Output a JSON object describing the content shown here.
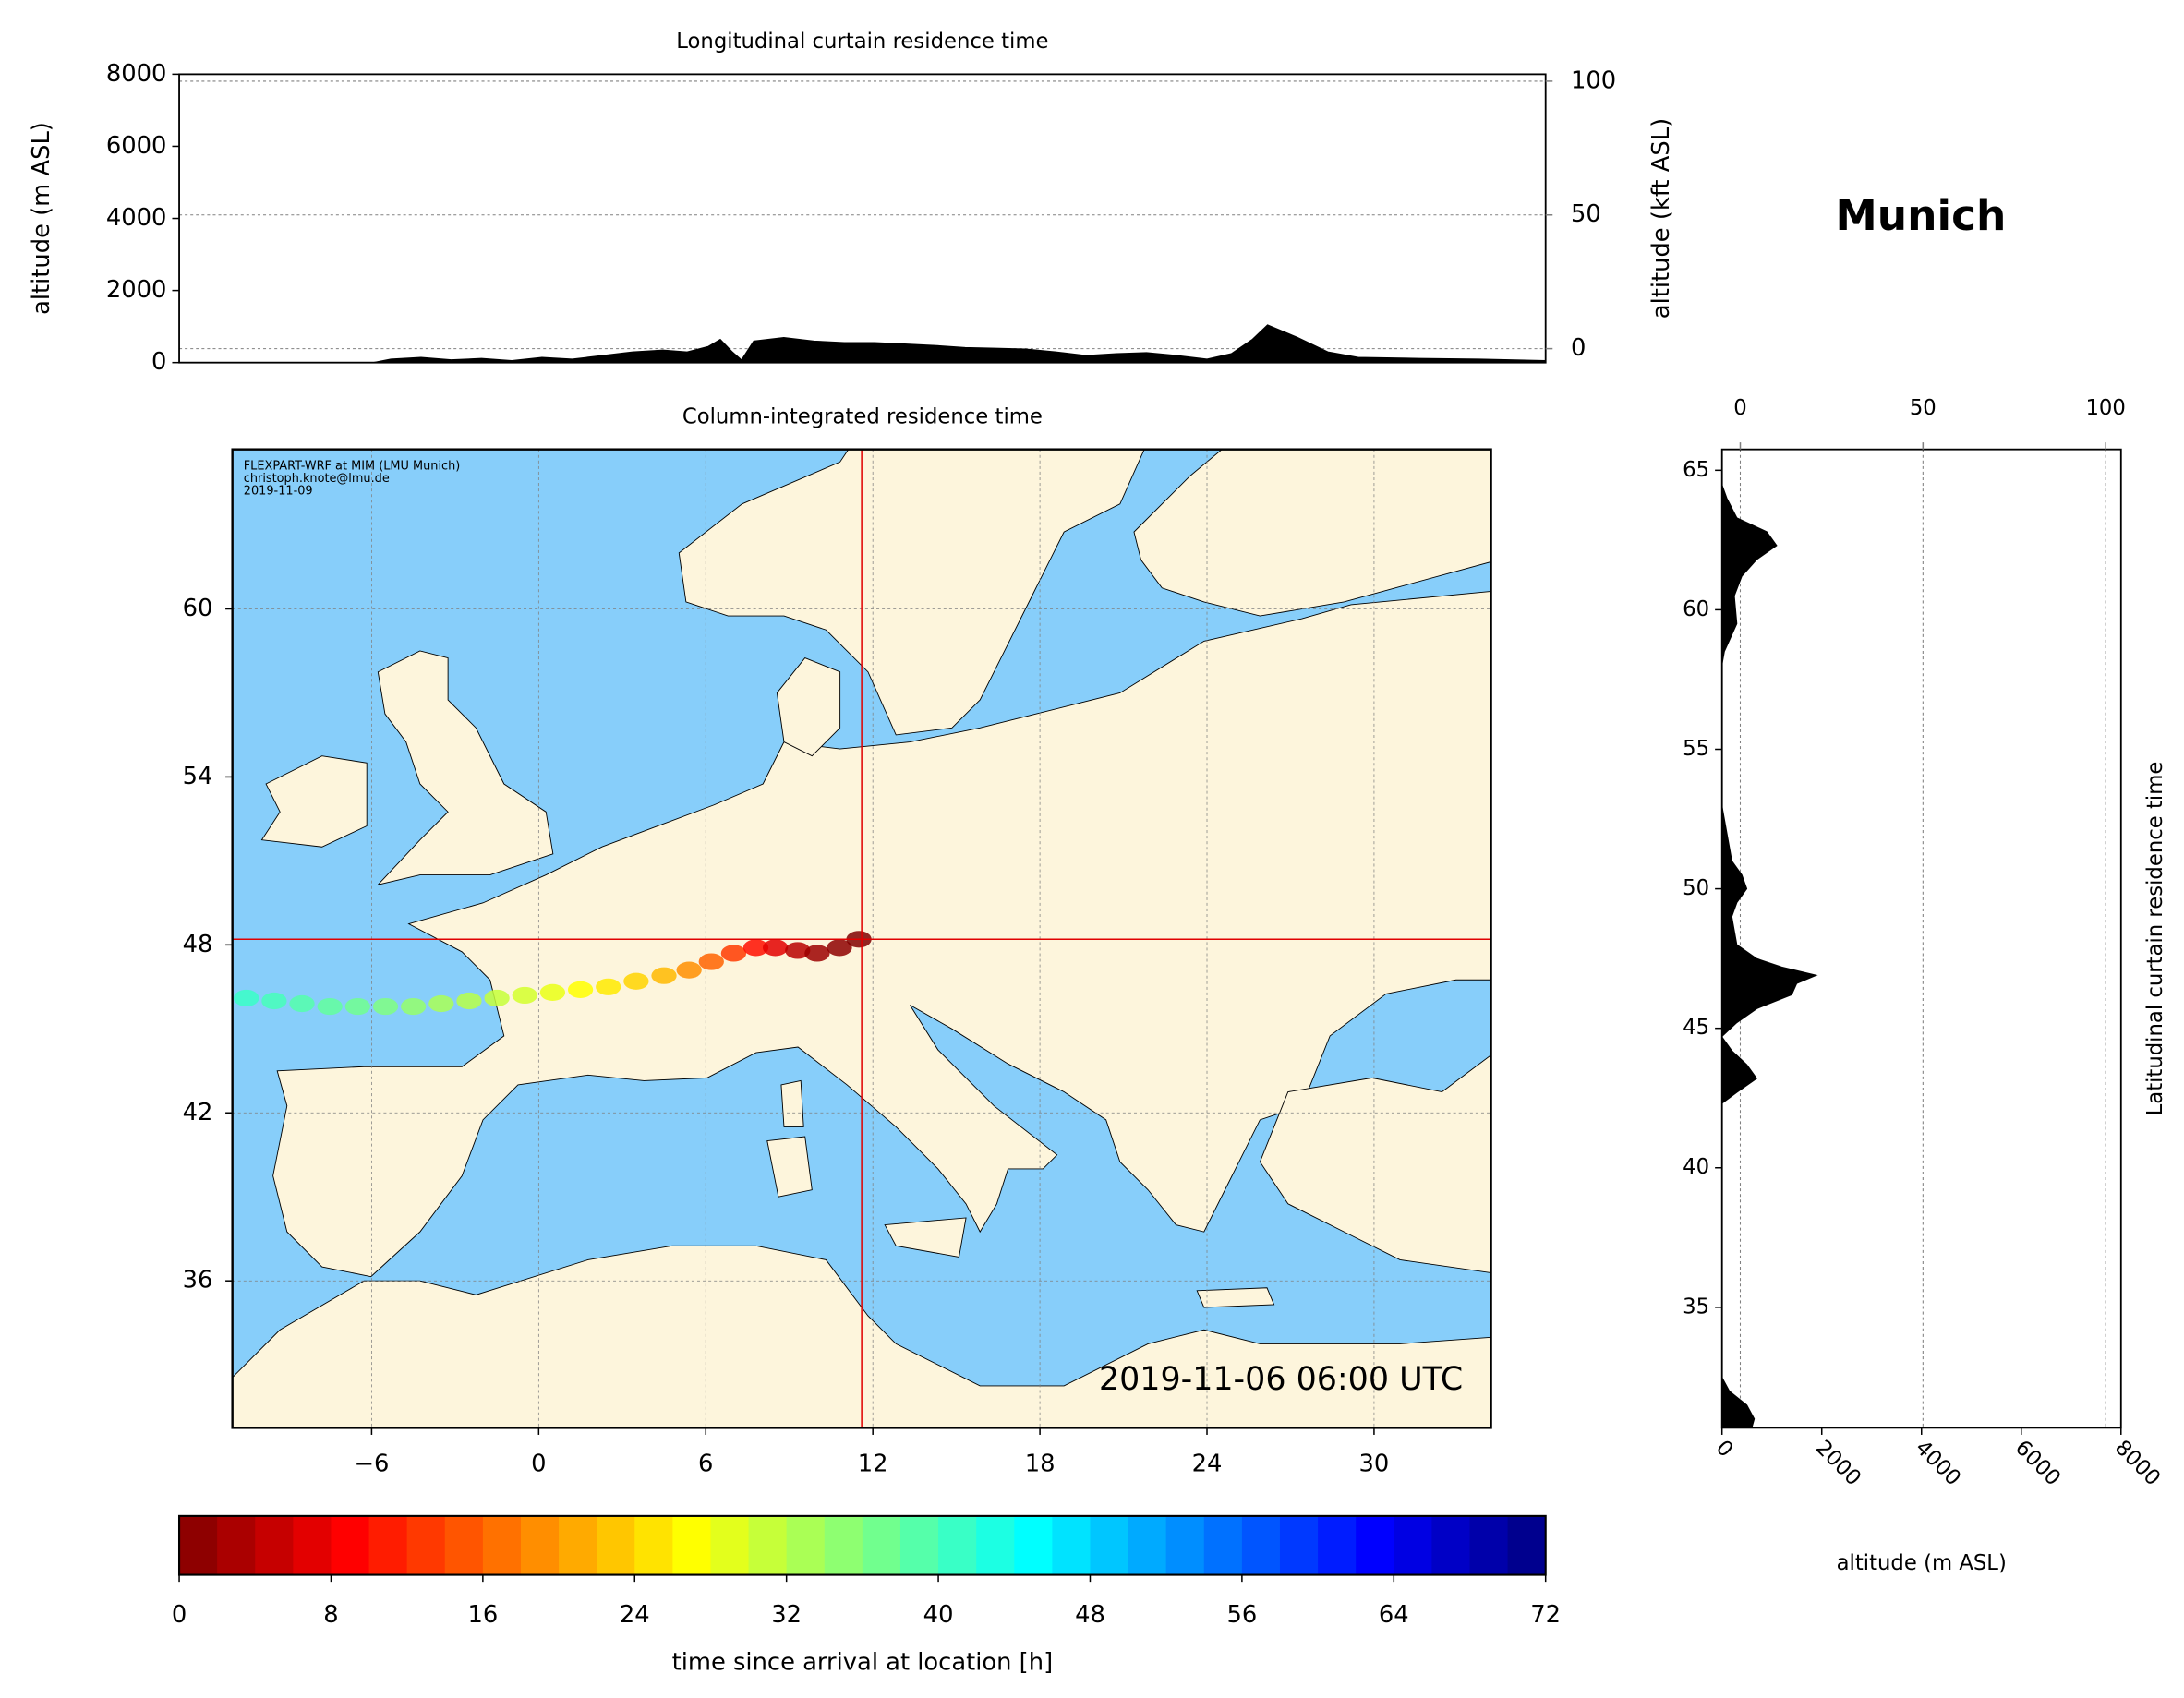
{
  "title": "Munich",
  "chart_data": [
    {
      "type": "area",
      "title": "Longitudinal curtain residence time",
      "ylabel": "altitude (m ASL)",
      "y2label": "altitude (kft ASL)",
      "xlim": [
        -11,
        34.2
      ],
      "ylim": [
        0,
        8000
      ],
      "yticks": [
        0,
        2000,
        4000,
        6000,
        8000
      ],
      "y2lim": [
        -5.2,
        102.6
      ],
      "y2ticks": [
        0,
        50,
        100
      ],
      "grid": true,
      "color": "#000000",
      "x": [
        -11,
        -4.6,
        -4,
        -3,
        -2,
        -1,
        0,
        1,
        2,
        3,
        4,
        5,
        5.8,
        6.5,
        6.9,
        7.3,
        7.6,
        8,
        9,
        10,
        11,
        12,
        13,
        14,
        15,
        16,
        17,
        18,
        19,
        20,
        21,
        22,
        23,
        23.8,
        24.5,
        25,
        26,
        27,
        28,
        30,
        32,
        34.2
      ],
      "values": [
        0,
        0,
        100,
        150,
        80,
        120,
        60,
        150,
        100,
        200,
        300,
        350,
        300,
        450,
        650,
        300,
        80,
        600,
        700,
        600,
        560,
        560,
        520,
        480,
        420,
        400,
        380,
        300,
        200,
        250,
        280,
        200,
        100,
        250,
        650,
        1050,
        700,
        300,
        150,
        120,
        100,
        60
      ]
    },
    {
      "type": "map",
      "title": "Column-integrated residence time",
      "xlim": [
        -11,
        34.2
      ],
      "ylim": [
        30.75,
        65.7
      ],
      "xticks": [
        {
          "value": -6,
          "label": "−6"
        },
        0,
        6,
        12,
        18,
        24,
        30
      ],
      "yticks": [
        36,
        42,
        48,
        54,
        60
      ],
      "grid": true,
      "ocean_color": "#87cefa",
      "land_color": "#fdf5dc",
      "crosshair": [
        11.6,
        48.2
      ],
      "crosshair_color": "#e00000",
      "annotation": "2019-11-06 06:00 UTC",
      "credits": [
        "FLEXPART-WRF at MIM (LMU Munich)",
        "christoph.knote@lmu.de",
        "2019-11-09"
      ],
      "trajectory": {
        "x": [
          11.5,
          10.8,
          10,
          9.3,
          8.5,
          7.8,
          7,
          6.2,
          5.4,
          4.5,
          3.5,
          2.5,
          1.5,
          0.5,
          -0.5,
          -1.5,
          -2.5,
          -3.5,
          -4.5,
          -5.5,
          -6.5,
          -7.5,
          -8.5,
          -9.5,
          -10.5
        ],
        "y": [
          48.2,
          47.9,
          47.7,
          47.8,
          47.9,
          47.9,
          47.7,
          47.4,
          47.1,
          46.9,
          46.7,
          46.5,
          46.4,
          46.3,
          46.2,
          46.1,
          46.0,
          45.9,
          45.8,
          45.8,
          45.8,
          45.8,
          45.9,
          46.0,
          46.1
        ],
        "c": [
          0,
          1,
          2,
          4,
          7,
          10,
          13,
          16,
          19,
          22,
          24,
          25.5,
          27,
          28.5,
          30,
          31,
          32,
          33,
          34.5,
          36,
          37,
          38,
          39,
          40,
          41
        ]
      }
    },
    {
      "type": "area",
      "orientation": "horizontal",
      "ylabel": "Latitudinal curtain residence time",
      "xlabel": "altitude (m ASL)",
      "ylim": [
        30.68,
        65.75
      ],
      "yticks": [
        35,
        40,
        45,
        50,
        55,
        60,
        65
      ],
      "xlim": [
        0,
        8000
      ],
      "xticks": [
        0,
        2000,
        4000,
        6000,
        8000
      ],
      "x2lim": [
        -5,
        104.2
      ],
      "x2ticks": [
        0,
        50,
        100
      ],
      "grid": true,
      "color": "#000000",
      "y": [
        30.68,
        31,
        31.5,
        32,
        32.5,
        33,
        42.3,
        42.7,
        43.2,
        43.7,
        44.2,
        44.7,
        45.2,
        45.7,
        46.2,
        46.6,
        46.9,
        47.2,
        47.5,
        48,
        48.5,
        49,
        49.5,
        50,
        50.5,
        51,
        52,
        53,
        56,
        58,
        58.5,
        59.5,
        60.5,
        61.2,
        61.8,
        62.3,
        62.8,
        63.3,
        64,
        64.5,
        65.75
      ],
      "values": [
        600,
        650,
        500,
        150,
        0,
        0,
        0,
        300,
        700,
        500,
        200,
        0,
        300,
        700,
        1400,
        1500,
        1900,
        1200,
        700,
        300,
        250,
        200,
        300,
        500,
        400,
        200,
        100,
        0,
        0,
        0,
        50,
        300,
        250,
        400,
        700,
        1100,
        900,
        300,
        100,
        0,
        0
      ]
    },
    {
      "type": "colorbar",
      "xlabel": "time since arrival at location [h]",
      "xlim": [
        0,
        72
      ],
      "xticks": [
        0,
        8,
        16,
        24,
        32,
        40,
        48,
        56,
        64,
        72
      ],
      "cmap": "jet_r",
      "levels": 36
    }
  ]
}
